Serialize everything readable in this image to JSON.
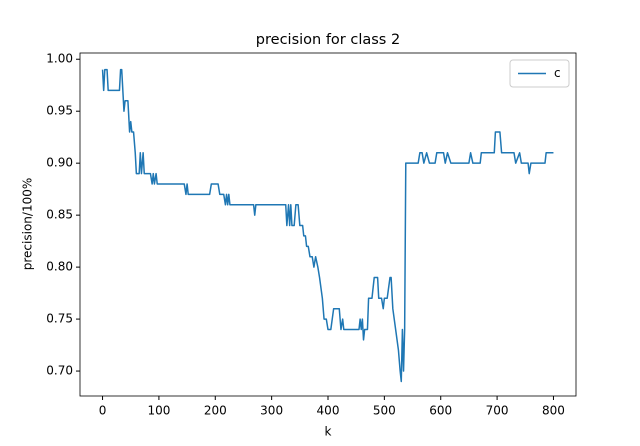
{
  "chart_data": {
    "type": "line",
    "title": "precision for class 2",
    "x_label": "k",
    "y_label": "precision/100%",
    "x": [
      0,
      2,
      4,
      8,
      10,
      30,
      32,
      34,
      38,
      40,
      45,
      48,
      50,
      52,
      55,
      58,
      60,
      65,
      67,
      69,
      72,
      74,
      85,
      88,
      90,
      92,
      95,
      97,
      145,
      148,
      150,
      152,
      190,
      193,
      205,
      208,
      215,
      218,
      220,
      222,
      224,
      226,
      268,
      270,
      272,
      325,
      327,
      330,
      332,
      334,
      336,
      340,
      343,
      347,
      350,
      355,
      357,
      360,
      362,
      365,
      368,
      372,
      375,
      378,
      382,
      385,
      390,
      393,
      397,
      400,
      405,
      410,
      420,
      423,
      426,
      428,
      455,
      457,
      459,
      461,
      463,
      465,
      470,
      472,
      478,
      482,
      488,
      490,
      495,
      498,
      500,
      505,
      510,
      512,
      515,
      520,
      525,
      528,
      530,
      532,
      534,
      536,
      538,
      560,
      563,
      567,
      570,
      575,
      580,
      590,
      593,
      605,
      608,
      612,
      618,
      650,
      653,
      657,
      670,
      672,
      695,
      697,
      705,
      708,
      730,
      733,
      740,
      743,
      755,
      757,
      760,
      785,
      787,
      800
    ],
    "series": [
      {
        "name": "c",
        "color": "#1f77b4",
        "values": [
          0.99,
          0.97,
          0.99,
          0.99,
          0.97,
          0.97,
          0.99,
          0.99,
          0.95,
          0.96,
          0.96,
          0.93,
          0.94,
          0.93,
          0.93,
          0.91,
          0.89,
          0.89,
          0.91,
          0.89,
          0.91,
          0.89,
          0.89,
          0.88,
          0.89,
          0.88,
          0.89,
          0.88,
          0.88,
          0.87,
          0.88,
          0.87,
          0.87,
          0.88,
          0.88,
          0.87,
          0.87,
          0.86,
          0.87,
          0.86,
          0.87,
          0.86,
          0.86,
          0.85,
          0.86,
          0.86,
          0.84,
          0.86,
          0.84,
          0.86,
          0.84,
          0.84,
          0.86,
          0.86,
          0.84,
          0.84,
          0.83,
          0.83,
          0.82,
          0.82,
          0.81,
          0.81,
          0.8,
          0.81,
          0.8,
          0.79,
          0.77,
          0.75,
          0.75,
          0.74,
          0.74,
          0.76,
          0.76,
          0.74,
          0.75,
          0.74,
          0.74,
          0.75,
          0.74,
          0.75,
          0.73,
          0.74,
          0.74,
          0.77,
          0.77,
          0.79,
          0.79,
          0.77,
          0.77,
          0.76,
          0.77,
          0.77,
          0.79,
          0.79,
          0.76,
          0.74,
          0.72,
          0.7,
          0.69,
          0.74,
          0.7,
          0.74,
          0.9,
          0.9,
          0.91,
          0.91,
          0.9,
          0.91,
          0.9,
          0.9,
          0.91,
          0.91,
          0.9,
          0.91,
          0.9,
          0.9,
          0.91,
          0.9,
          0.9,
          0.91,
          0.91,
          0.93,
          0.93,
          0.91,
          0.91,
          0.9,
          0.91,
          0.9,
          0.9,
          0.89,
          0.9,
          0.9,
          0.91,
          0.91
        ]
      }
    ],
    "xlim": [
      -40,
      840
    ],
    "ylim": [
      0.676,
      1.006
    ],
    "xticks": [
      0,
      100,
      200,
      300,
      400,
      500,
      600,
      700,
      800
    ],
    "yticks": [
      {
        "value": 0.7,
        "label": "0.70"
      },
      0.75,
      {
        "value": 0.8,
        "label": "0.80"
      },
      0.85,
      {
        "value": 0.9,
        "label": "0.90"
      },
      0.95,
      {
        "value": 1.0,
        "label": "1.00"
      }
    ],
    "legend": "upper right",
    "grid": false
  }
}
